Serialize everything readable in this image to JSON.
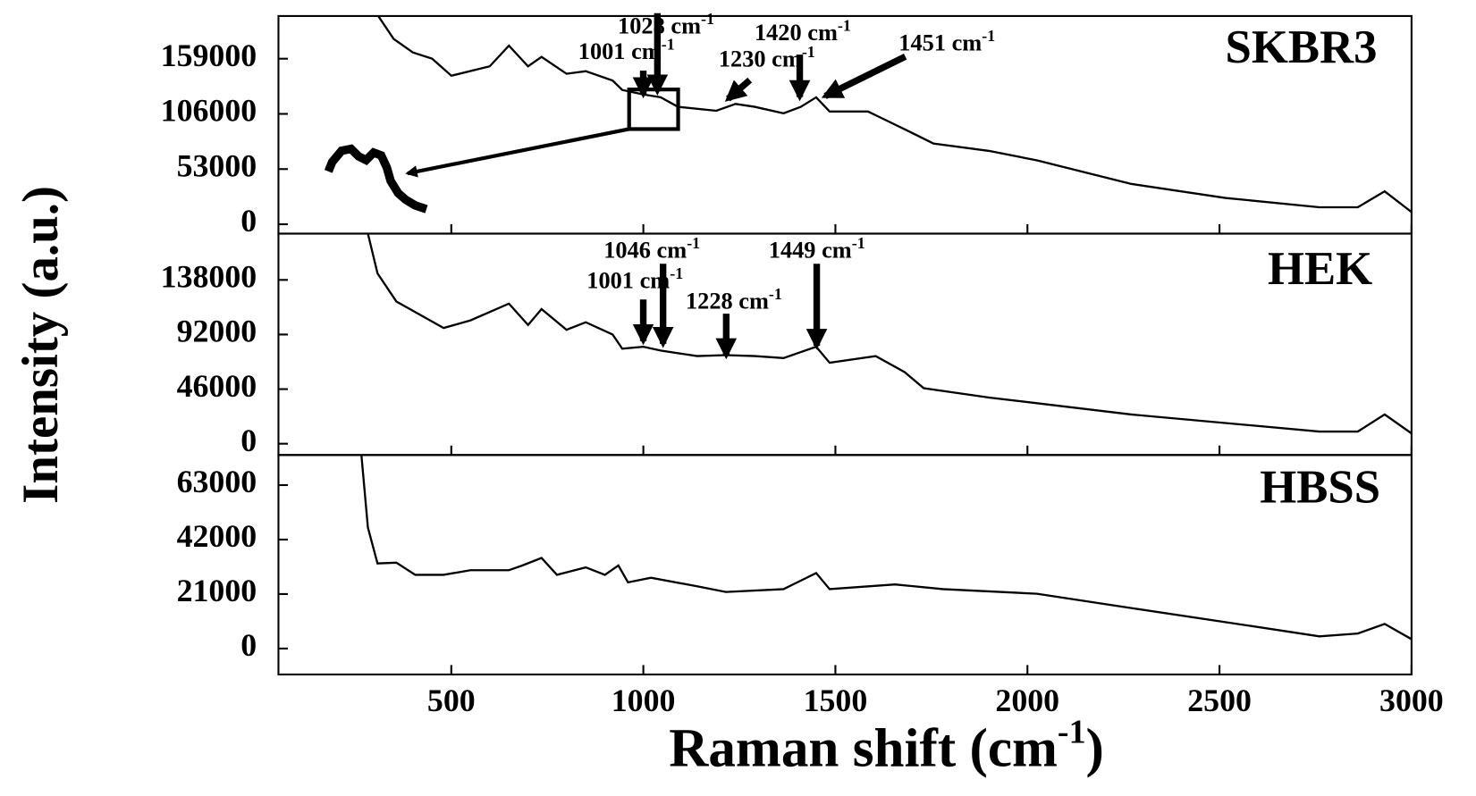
{
  "chart_data": [
    {
      "type": "line",
      "ylabel": "Intensity (a.u.)",
      "x": [
        310,
        350,
        400,
        450,
        500,
        600,
        650,
        700,
        735,
        800,
        850,
        920,
        945,
        1000,
        1045,
        1090,
        1190,
        1240,
        1290,
        1365,
        1410,
        1450,
        1485,
        1585,
        1620,
        1695,
        1755,
        1900,
        2025,
        2270,
        2515,
        2760,
        2860,
        2930,
        3000
      ],
      "series": [
        {
          "name": "SKBR3",
          "color": "#000000",
          "values": [
            200000,
            178000,
            165000,
            159000,
            142600,
            151700,
            171500,
            151700,
            160700,
            144500,
            147000,
            138000,
            129000,
            124600,
            122000,
            112800,
            109000,
            115600,
            112800,
            106500,
            112800,
            121900,
            108300,
            108300,
            102000,
            88500,
            77600,
            70400,
            61400,
            38800,
            25300,
            16300,
            16300,
            31600,
            11700
          ]
        }
      ],
      "xlim": [
        50,
        3000
      ],
      "ylim": [
        -9000,
        200000
      ],
      "yticks": [
        0,
        53000,
        106000,
        159000
      ],
      "annotations": [
        {
          "text": "1001 cm",
          "sup": "-1"
        },
        {
          "text": "1028 cm",
          "sup": "-1"
        },
        {
          "text": "1230 cm",
          "sup": "-1"
        },
        {
          "text": "1420 cm",
          "sup": "-1"
        },
        {
          "text": "1451 cm",
          "sup": "-1"
        }
      ]
    },
    {
      "type": "line",
      "x": [
        283,
        308,
        357,
        480,
        550,
        650,
        700,
        735,
        800,
        850,
        920,
        945,
        1000,
        1045,
        1140,
        1215,
        1290,
        1365,
        1450,
        1485,
        1605,
        1680,
        1730,
        1900,
        2270,
        2760,
        2860,
        2930,
        3000
      ],
      "series": [
        {
          "name": "HEK",
          "color": "#000000",
          "values": [
            177000,
            143500,
            119800,
            97500,
            103900,
            118000,
            100000,
            113400,
            96000,
            102300,
            92000,
            80100,
            81700,
            78500,
            73800,
            74600,
            73800,
            72200,
            81700,
            68200,
            73800,
            60300,
            46800,
            38900,
            24600,
            10300,
            10300,
            24600,
            8700
          ]
        }
      ],
      "xlim": [
        50,
        3000
      ],
      "ylim": [
        -9500,
        177000
      ],
      "yticks": [
        0,
        46000,
        92000,
        138000
      ],
      "annotations": [
        {
          "text": "1046 cm",
          "sup": "-1"
        },
        {
          "text": "1001 cm",
          "sup": "-1"
        },
        {
          "text": "1228 cm",
          "sup": "-1"
        },
        {
          "text": "1449 cm",
          "sup": "-1"
        }
      ]
    },
    {
      "type": "line",
      "xlabel": {
        "text": "Raman shift (cm",
        "sup": "-1",
        "tail": ")"
      },
      "x": [
        266,
        283,
        308,
        357,
        406,
        480,
        550,
        650,
        685,
        735,
        775,
        850,
        900,
        935,
        960,
        1020,
        1140,
        1215,
        1365,
        1450,
        1485,
        1655,
        1780,
        2025,
        2270,
        2515,
        2760,
        2860,
        2930,
        3000
      ],
      "series": [
        {
          "name": "HBSS",
          "color": "#000000",
          "values": [
            74600,
            46600,
            32800,
            33100,
            28400,
            28400,
            30200,
            30200,
            32000,
            34900,
            28400,
            31300,
            28400,
            32000,
            25500,
            27300,
            24000,
            21800,
            22900,
            29100,
            22900,
            24700,
            22900,
            21100,
            15600,
            10200,
            4700,
            5800,
            9500,
            3600
          ]
        }
      ],
      "xlim": [
        50,
        3000
      ],
      "ylim": [
        -10000,
        74600
      ],
      "yticks": [
        0,
        21000,
        42000,
        63000
      ],
      "xticks": [
        500,
        1000,
        1500,
        2000,
        2500,
        3000
      ]
    }
  ]
}
